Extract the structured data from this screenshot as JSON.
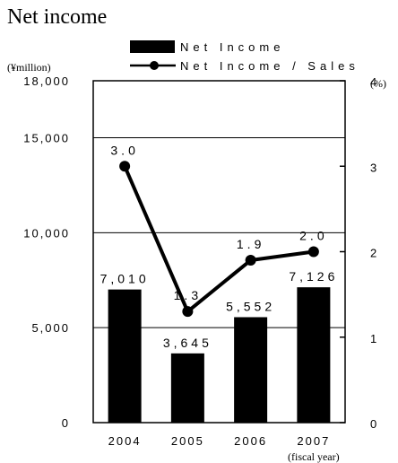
{
  "title": "Net income",
  "left_unit": "(¥million)",
  "right_unit": "(%)",
  "fiscal_label": "(fiscal year)",
  "chart_data": {
    "type": "bar",
    "categories": [
      "2004",
      "2005",
      "2006",
      "2007"
    ],
    "series": [
      {
        "name": "Net Income",
        "type": "bar",
        "axis": "left",
        "values": [
          7010,
          3645,
          5552,
          7126
        ],
        "labels": [
          "7,010",
          "3,645",
          "5,552",
          "7,126"
        ]
      },
      {
        "name": "Net Income / Sales",
        "type": "line",
        "axis": "right",
        "values": [
          3.0,
          1.3,
          1.9,
          2.0
        ],
        "labels": [
          "3.0",
          "1.3",
          "1.9",
          "2.0"
        ]
      }
    ],
    "ylim": [
      0,
      18000
    ],
    "y2lim": [
      0,
      4
    ],
    "left_ticks": [
      0,
      5000,
      10000,
      15000,
      18000
    ],
    "left_tick_labels": [
      "0",
      "5,000",
      "10,000",
      "15,000",
      "18,000"
    ],
    "right_ticks": [
      0,
      1,
      2,
      3,
      4
    ],
    "right_tick_labels": [
      "0",
      "1",
      "2",
      "3",
      "4"
    ],
    "gridlines": [
      5000,
      10000,
      15000
    ],
    "grid": true,
    "legend": "top-right",
    "colors": {
      "bar": "#000000",
      "line": "#000000"
    }
  }
}
